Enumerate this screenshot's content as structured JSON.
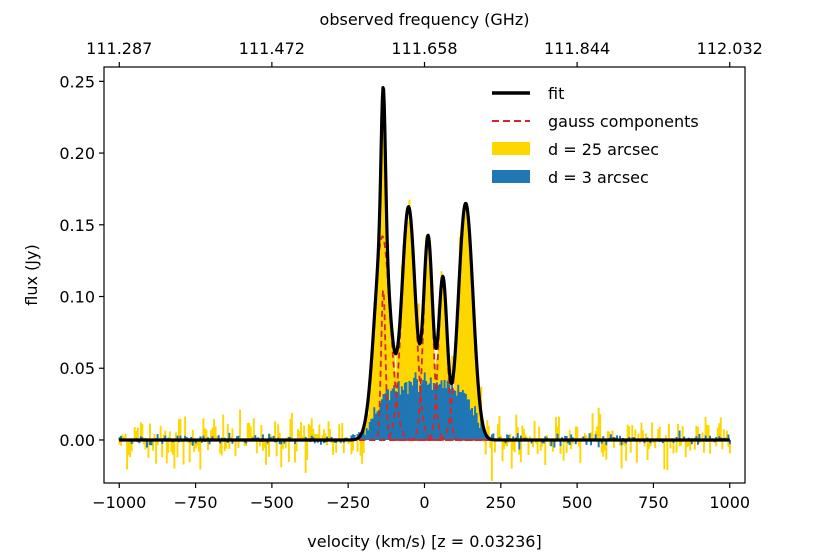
{
  "chart_data": {
    "type": "bar",
    "xlabel": "velocity (km/s) [z = 0.03236]",
    "ylabel": "flux (Jy)",
    "top_xlabel": "observed frequency (GHz)",
    "xlim": [
      -1050,
      1050
    ],
    "ylim": [
      -0.03,
      0.26
    ],
    "x_ticks": [
      -1000,
      -750,
      -500,
      -250,
      0,
      250,
      500,
      750,
      1000
    ],
    "x_tick_labels": [
      "−1000",
      "−750",
      "−500",
      "−250",
      "0",
      "250",
      "500",
      "750",
      "1000"
    ],
    "y_ticks": [
      0.0,
      0.05,
      0.1,
      0.15,
      0.2,
      0.25
    ],
    "y_tick_labels": [
      "0.00",
      "0.05",
      "0.10",
      "0.15",
      "0.20",
      "0.25"
    ],
    "top_ticks": [
      {
        "x": -1000,
        "label": "111.287"
      },
      {
        "x": -500,
        "label": "111.472"
      },
      {
        "x": 0,
        "label": "111.658"
      },
      {
        "x": 500,
        "label": "111.844"
      },
      {
        "x": 1000,
        "label": "112.032"
      }
    ],
    "velocity_range": [
      -1000,
      1000
    ],
    "channel_width": 5,
    "noise_rms_25": 0.01,
    "noise_rms_3": 0.002,
    "broad_component": {
      "amplitude": 0.04,
      "center": 0,
      "flat_halfwidth": 160,
      "edge_sigma": 25
    },
    "gauss_components": [
      {
        "amplitude": 0.142,
        "center": -138,
        "sigma": 26
      },
      {
        "amplitude": 0.105,
        "center": -135,
        "sigma": 7
      },
      {
        "amplitude": 0.162,
        "center": -52,
        "sigma": 22
      },
      {
        "amplitude": 0.14,
        "center": 12,
        "sigma": 15
      },
      {
        "amplitude": 0.112,
        "center": 60,
        "sigma": 14
      },
      {
        "amplitude": 0.165,
        "center": 135,
        "sigma": 24
      }
    ],
    "series": [
      {
        "name": "fit",
        "color": "#000000",
        "style": "solid"
      },
      {
        "name": "gauss components",
        "color": "#d62728",
        "style": "dashed"
      },
      {
        "name": "d = 25 arcsec",
        "color": "#ffd700",
        "style": "bar"
      },
      {
        "name": "d = 3 arcsec",
        "color": "#1f77b4",
        "style": "bar"
      }
    ],
    "legend_location": "upper-right"
  }
}
